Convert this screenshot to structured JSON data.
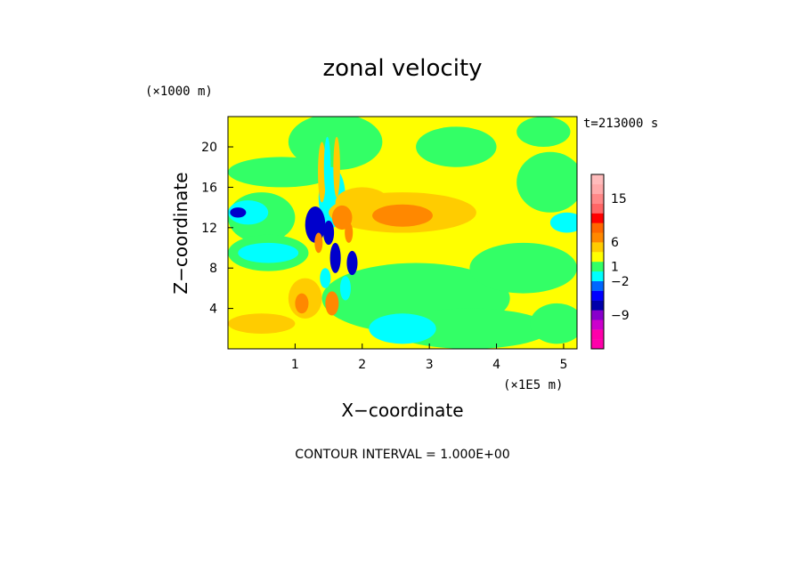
{
  "chart_data": {
    "type": "heatmap",
    "title": "zonal velocity",
    "xlabel": "X−coordinate",
    "ylabel": "Z−coordinate",
    "x_multiplier_label": "(×1E5 m)",
    "y_multiplier_label": "(×1000 m)",
    "time_label": "t=213000 s",
    "footer": "CONTOUR INTERVAL = 1.000E+00",
    "xlim": [
      0,
      5.2
    ],
    "ylim": [
      0,
      23
    ],
    "x_ticks": [
      {
        "value": 1,
        "label": "1"
      },
      {
        "value": 2,
        "label": "2"
      },
      {
        "value": 3,
        "label": "3"
      },
      {
        "value": 4,
        "label": "4"
      },
      {
        "value": 5,
        "label": "5"
      }
    ],
    "y_ticks": [
      {
        "value": 4,
        "label": "4"
      },
      {
        "value": 8,
        "label": "8"
      },
      {
        "value": 12,
        "label": "12"
      },
      {
        "value": 16,
        "label": "16"
      },
      {
        "value": 20,
        "label": "20"
      }
    ],
    "background_color": "#ffff00",
    "regions": [
      {
        "shape": "ellipse",
        "color": "#33ff66",
        "cx": 0.5,
        "cy": 13,
        "rx": 0.5,
        "ry": 2.5
      },
      {
        "shape": "ellipse",
        "color": "#33ff66",
        "cx": 0.6,
        "cy": 9.5,
        "rx": 0.6,
        "ry": 1.8
      },
      {
        "shape": "ellipse",
        "color": "#33ff66",
        "cx": 0.8,
        "cy": 17.5,
        "rx": 0.8,
        "ry": 1.5
      },
      {
        "shape": "ellipse",
        "color": "#33ff66",
        "cx": 2.8,
        "cy": 5,
        "rx": 1.4,
        "ry": 3.5
      },
      {
        "shape": "ellipse",
        "color": "#33ff66",
        "cx": 3.6,
        "cy": 2,
        "rx": 1.2,
        "ry": 2
      },
      {
        "shape": "ellipse",
        "color": "#33ff66",
        "cx": 4.4,
        "cy": 8,
        "rx": 0.8,
        "ry": 2.5
      },
      {
        "shape": "ellipse",
        "color": "#33ff66",
        "cx": 4.8,
        "cy": 16.5,
        "rx": 0.5,
        "ry": 3
      },
      {
        "shape": "ellipse",
        "color": "#33ff66",
        "cx": 1.6,
        "cy": 20.5,
        "rx": 0.7,
        "ry": 2.8
      },
      {
        "shape": "ellipse",
        "color": "#33ff66",
        "cx": 3.4,
        "cy": 20,
        "rx": 0.6,
        "ry": 2
      },
      {
        "shape": "ellipse",
        "color": "#33ff66",
        "cx": 4.7,
        "cy": 21.5,
        "rx": 0.4,
        "ry": 1.5
      },
      {
        "shape": "ellipse",
        "color": "#33ff66",
        "cx": 4.9,
        "cy": 2.5,
        "rx": 0.4,
        "ry": 2
      },
      {
        "shape": "ellipse",
        "color": "#00ffff",
        "cx": 0.3,
        "cy": 13.5,
        "rx": 0.3,
        "ry": 1.2
      },
      {
        "shape": "ellipse",
        "color": "#00ffff",
        "cx": 0.6,
        "cy": 9.5,
        "rx": 0.45,
        "ry": 1
      },
      {
        "shape": "ellipse",
        "color": "#00ffff",
        "cx": 2.6,
        "cy": 2,
        "rx": 0.5,
        "ry": 1.5
      },
      {
        "shape": "ellipse",
        "color": "#00ffff",
        "cx": 5.05,
        "cy": 12.5,
        "rx": 0.25,
        "ry": 1
      },
      {
        "shape": "ellipse",
        "color": "#00ffff",
        "cx": 1.55,
        "cy": 15,
        "rx": 0.2,
        "ry": 3
      },
      {
        "shape": "ellipse",
        "color": "#ffcc00",
        "cx": 2.6,
        "cy": 13.5,
        "rx": 1.1,
        "ry": 2
      },
      {
        "shape": "ellipse",
        "color": "#ffcc00",
        "cx": 0.5,
        "cy": 2.5,
        "rx": 0.5,
        "ry": 1
      },
      {
        "shape": "ellipse",
        "color": "#ffcc00",
        "cx": 2.0,
        "cy": 14.5,
        "rx": 0.4,
        "ry": 1.5
      },
      {
        "shape": "ellipse",
        "color": "#ffcc00",
        "cx": 1.15,
        "cy": 5,
        "rx": 0.25,
        "ry": 2
      },
      {
        "shape": "ellipse",
        "color": "#ff8800",
        "cx": 2.6,
        "cy": 13.2,
        "rx": 0.45,
        "ry": 1.1
      },
      {
        "shape": "ellipse",
        "color": "#ff8800",
        "cx": 1.7,
        "cy": 13,
        "rx": 0.15,
        "ry": 1.2
      },
      {
        "shape": "ellipse",
        "color": "#ff8800",
        "cx": 1.1,
        "cy": 4.5,
        "rx": 0.1,
        "ry": 1
      },
      {
        "shape": "ellipse",
        "color": "#ff8800",
        "cx": 1.55,
        "cy": 4.5,
        "rx": 0.1,
        "ry": 1.2
      },
      {
        "shape": "ellipse",
        "color": "#0000cc",
        "cx": 1.3,
        "cy": 12.3,
        "rx": 0.15,
        "ry": 1.8
      },
      {
        "shape": "ellipse",
        "color": "#0000cc",
        "cx": 1.5,
        "cy": 11.5,
        "rx": 0.08,
        "ry": 1.2
      },
      {
        "shape": "ellipse",
        "color": "#0000cc",
        "cx": 1.6,
        "cy": 9,
        "rx": 0.08,
        "ry": 1.5
      },
      {
        "shape": "ellipse",
        "color": "#0000cc",
        "cx": 1.85,
        "cy": 8.5,
        "rx": 0.08,
        "ry": 1.2
      },
      {
        "shape": "ellipse",
        "color": "#0000cc",
        "cx": 0.15,
        "cy": 13.5,
        "rx": 0.12,
        "ry": 0.5
      },
      {
        "shape": "ellipse",
        "color": "#00ffff",
        "cx": 1.75,
        "cy": 6,
        "rx": 0.08,
        "ry": 1.2
      },
      {
        "shape": "ellipse",
        "color": "#00ffff",
        "cx": 1.45,
        "cy": 7,
        "rx": 0.08,
        "ry": 1
      },
      {
        "shape": "ellipse",
        "color": "#ff8800",
        "cx": 1.35,
        "cy": 10.5,
        "rx": 0.06,
        "ry": 1
      },
      {
        "shape": "ellipse",
        "color": "#ff8800",
        "cx": 1.8,
        "cy": 11.5,
        "rx": 0.06,
        "ry": 1
      },
      {
        "shape": "ellipse",
        "color": "#ffcc00",
        "cx": 1.4,
        "cy": 17.5,
        "rx": 0.06,
        "ry": 3
      },
      {
        "shape": "ellipse",
        "color": "#00ffff",
        "cx": 1.48,
        "cy": 18,
        "rx": 0.05,
        "ry": 3
      },
      {
        "shape": "ellipse",
        "color": "#ffcc00",
        "cx": 1.62,
        "cy": 18,
        "rx": 0.05,
        "ry": 3
      }
    ],
    "colorbar": {
      "levels": [
        {
          "color": "#ff00aa"
        },
        {
          "color": "#ff00aa"
        },
        {
          "color": "#cc00cc"
        },
        {
          "color": "#8800cc"
        },
        {
          "color": "#0000aa"
        },
        {
          "color": "#0000ff"
        },
        {
          "color": "#0066ff"
        },
        {
          "color": "#00ffff"
        },
        {
          "color": "#33ff66"
        },
        {
          "color": "#ffff00"
        },
        {
          "color": "#ffcc00"
        },
        {
          "color": "#ff8800"
        },
        {
          "color": "#ff6600"
        },
        {
          "color": "#ff0000"
        },
        {
          "color": "#ff6666"
        },
        {
          "color": "#ff8888"
        },
        {
          "color": "#ffaaaa"
        },
        {
          "color": "#ffbbbb"
        }
      ],
      "labels": [
        {
          "value": 15,
          "label": "15"
        },
        {
          "value": 6,
          "label": "6"
        },
        {
          "value": 1,
          "label": "1"
        },
        {
          "value": -2,
          "label": "−2"
        },
        {
          "value": -9,
          "label": "−9"
        }
      ]
    }
  }
}
